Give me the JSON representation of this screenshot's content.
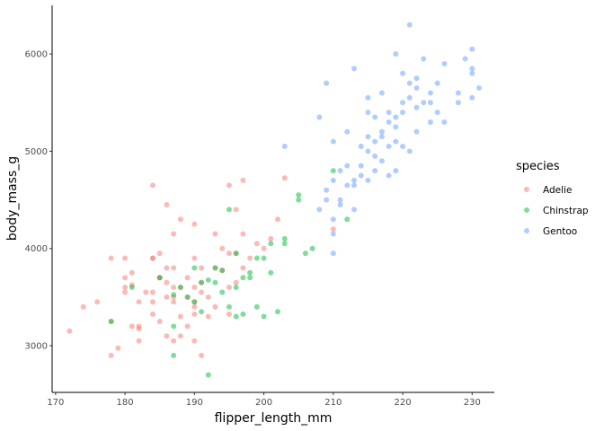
{
  "chart_data": {
    "type": "scatter",
    "xlabel": "flipper_length_mm",
    "ylabel": "body_mass_g",
    "xlim": [
      169.5,
      233.2
    ],
    "ylim": [
      2520,
      6500
    ],
    "xticks": [
      170,
      180,
      190,
      200,
      210,
      220,
      230
    ],
    "yticks": [
      3000,
      4000,
      5000,
      6000
    ],
    "grid": false,
    "legend": {
      "title": "species",
      "placement": "right"
    },
    "point_opacity": 0.5,
    "series": [
      {
        "name": "Adelie",
        "color": "#F8766D",
        "points": [
          [
            172,
            3150
          ],
          [
            174,
            3400
          ],
          [
            176,
            3450
          ],
          [
            178,
            3900
          ],
          [
            178,
            3250
          ],
          [
            178,
            2900
          ],
          [
            179,
            2975
          ],
          [
            180,
            3900
          ],
          [
            180,
            3700
          ],
          [
            180,
            3550
          ],
          [
            181,
            3200
          ],
          [
            181,
            3625
          ],
          [
            181,
            3750
          ],
          [
            182,
            3050
          ],
          [
            182,
            3450
          ],
          [
            182,
            3175
          ],
          [
            183,
            3550
          ],
          [
            184,
            3900
          ],
          [
            184,
            4650
          ],
          [
            184,
            3450
          ],
          [
            184,
            3325
          ],
          [
            184,
            3550
          ],
          [
            185,
            3700
          ],
          [
            185,
            3950
          ],
          [
            185,
            3250
          ],
          [
            186,
            3800
          ],
          [
            186,
            3100
          ],
          [
            186,
            3500
          ],
          [
            186,
            3650
          ],
          [
            187,
            3800
          ],
          [
            187,
            3050
          ],
          [
            187,
            3500
          ],
          [
            187,
            3450
          ],
          [
            187,
            4150
          ],
          [
            188,
            3300
          ],
          [
            188,
            3600
          ],
          [
            188,
            4300
          ],
          [
            189,
            3200
          ],
          [
            189,
            3700
          ],
          [
            190,
            3400
          ],
          [
            190,
            3600
          ],
          [
            190,
            3900
          ],
          [
            190,
            3050
          ],
          [
            190,
            4250
          ],
          [
            190,
            3325
          ],
          [
            191,
            3550
          ],
          [
            191,
            3800
          ],
          [
            192,
            3500
          ],
          [
            193,
            3400
          ],
          [
            193,
            3800
          ],
          [
            194,
            3775
          ],
          [
            195,
            3325
          ],
          [
            195,
            3600
          ],
          [
            196,
            3950
          ],
          [
            196,
            4400
          ],
          [
            197,
            4150
          ],
          [
            197,
            4700
          ],
          [
            198,
            3900
          ],
          [
            199,
            4050
          ],
          [
            200,
            4000
          ],
          [
            201,
            4100
          ],
          [
            202,
            4300
          ],
          [
            203,
            4725
          ],
          [
            210,
            4200
          ],
          [
            195,
            4650
          ],
          [
            196,
            3650
          ],
          [
            193,
            4150
          ],
          [
            191,
            3650
          ],
          [
            189,
            3500
          ],
          [
            185,
            3700
          ],
          [
            182,
            3200
          ],
          [
            180,
            3600
          ],
          [
            184,
            3900
          ],
          [
            186,
            4450
          ],
          [
            187,
            3600
          ],
          [
            188,
            3100
          ],
          [
            190,
            3450
          ],
          [
            191,
            2900
          ],
          [
            192,
            3300
          ],
          [
            194,
            4000
          ],
          [
            195,
            3950
          ],
          [
            197,
            3800
          ]
        ]
      },
      {
        "name": "Chinstrap",
        "color": "#00BA38",
        "points": [
          [
            178,
            3250
          ],
          [
            181,
            3600
          ],
          [
            185,
            3700
          ],
          [
            187,
            3525
          ],
          [
            187,
            3200
          ],
          [
            187,
            2900
          ],
          [
            188,
            3600
          ],
          [
            189,
            3500
          ],
          [
            190,
            3450
          ],
          [
            190,
            3800
          ],
          [
            191,
            3650
          ],
          [
            192,
            2700
          ],
          [
            193,
            3800
          ],
          [
            193,
            3650
          ],
          [
            194,
            3775
          ],
          [
            195,
            4400
          ],
          [
            195,
            3400
          ],
          [
            196,
            3950
          ],
          [
            196,
            3300
          ],
          [
            197,
            3700
          ],
          [
            198,
            3700
          ],
          [
            198,
            3750
          ],
          [
            199,
            3900
          ],
          [
            200,
            3900
          ],
          [
            200,
            3300
          ],
          [
            201,
            3750
          ],
          [
            201,
            4050
          ],
          [
            202,
            3350
          ],
          [
            203,
            4100
          ],
          [
            205,
            4500
          ],
          [
            205,
            4550
          ],
          [
            206,
            3950
          ],
          [
            207,
            4000
          ],
          [
            210,
            4800
          ],
          [
            212,
            4300
          ],
          [
            191,
            3350
          ],
          [
            192,
            3675
          ],
          [
            194,
            3550
          ],
          [
            196,
            3600
          ],
          [
            199,
            3400
          ],
          [
            197,
            3325
          ],
          [
            203,
            4050
          ]
        ]
      },
      {
        "name": "Gentoo",
        "color": "#619CFF",
        "points": [
          [
            203,
            5050
          ],
          [
            208,
            4400
          ],
          [
            209,
            4600
          ],
          [
            210,
            4700
          ],
          [
            210,
            4150
          ],
          [
            210,
            3950
          ],
          [
            211,
            4450
          ],
          [
            212,
            4850
          ],
          [
            213,
            4650
          ],
          [
            213,
            5850
          ],
          [
            214,
            4750
          ],
          [
            215,
            5000
          ],
          [
            215,
            5550
          ],
          [
            216,
            4800
          ],
          [
            216,
            5100
          ],
          [
            217,
            4900
          ],
          [
            217,
            5600
          ],
          [
            218,
            5300
          ],
          [
            218,
            4750
          ],
          [
            219,
            5250
          ],
          [
            219,
            6000
          ],
          [
            220,
            5400
          ],
          [
            221,
            5550
          ],
          [
            221,
            6300
          ],
          [
            222,
            5450
          ],
          [
            222,
            5750
          ],
          [
            223,
            5950
          ],
          [
            224,
            5600
          ],
          [
            225,
            5400
          ],
          [
            226,
            5300
          ],
          [
            228,
            5600
          ],
          [
            229,
            5950
          ],
          [
            230,
            5800
          ],
          [
            230,
            5850
          ],
          [
            230,
            5550
          ],
          [
            231,
            5650
          ],
          [
            212,
            5200
          ],
          [
            213,
            4400
          ],
          [
            214,
            4850
          ],
          [
            215,
            5150
          ],
          [
            216,
            4950
          ],
          [
            217,
            5200
          ],
          [
            218,
            5400
          ],
          [
            219,
            5100
          ],
          [
            220,
            5050
          ],
          [
            220,
            5800
          ],
          [
            221,
            5000
          ],
          [
            222,
            5200
          ],
          [
            223,
            5500
          ],
          [
            224,
            5300
          ],
          [
            209,
            4500
          ],
          [
            210,
            4300
          ],
          [
            211,
            4800
          ],
          [
            212,
            4650
          ],
          [
            214,
            5050
          ],
          [
            215,
            4700
          ],
          [
            216,
            5350
          ],
          [
            218,
            5050
          ],
          [
            219,
            5350
          ],
          [
            228,
            5500
          ],
          [
            225,
            5700
          ],
          [
            230,
            6050
          ],
          [
            208,
            5350
          ],
          [
            209,
            5700
          ],
          [
            221,
            5700
          ],
          [
            210,
            5100
          ],
          [
            211,
            4500
          ],
          [
            213,
            4700
          ],
          [
            215,
            5400
          ],
          [
            217,
            5150
          ],
          [
            219,
            4800
          ],
          [
            220,
            5500
          ],
          [
            222,
            5650
          ],
          [
            224,
            5500
          ],
          [
            226,
            5900
          ]
        ]
      }
    ]
  }
}
